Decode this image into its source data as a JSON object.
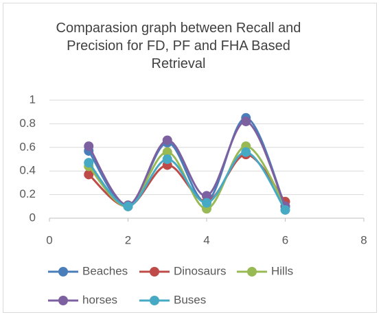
{
  "chart_data": {
    "type": "line",
    "title": "Comparasion graph between Recall and Precision for FD, PF and FHA Based Retrieval",
    "x": [
      1,
      2,
      3,
      4,
      5,
      6
    ],
    "series": [
      {
        "name": "Beaches",
        "color": "#4a7ebb",
        "values": [
          0.57,
          0.1,
          0.64,
          0.14,
          0.85,
          0.1
        ]
      },
      {
        "name": "Dinosaurs",
        "color": "#be4b48",
        "values": [
          0.37,
          0.1,
          0.45,
          0.14,
          0.54,
          0.14
        ]
      },
      {
        "name": "Hills",
        "color": "#98b954",
        "values": [
          0.44,
          0.1,
          0.56,
          0.08,
          0.61,
          0.1
        ]
      },
      {
        "name": "horses",
        "color": "#7d60a0",
        "values": [
          0.61,
          0.11,
          0.66,
          0.19,
          0.82,
          0.1
        ]
      },
      {
        "name": "Buses",
        "color": "#46aac5",
        "values": [
          0.47,
          0.1,
          0.5,
          0.13,
          0.56,
          0.07
        ]
      }
    ],
    "xlim": [
      0,
      8
    ],
    "xticks": [
      0,
      2,
      4,
      6,
      8
    ],
    "ylim": [
      0,
      1
    ],
    "yticks": [
      0,
      0.2,
      0.4,
      0.6,
      0.8,
      1
    ],
    "grid": true,
    "smooth": true,
    "legend": "bottom"
  }
}
